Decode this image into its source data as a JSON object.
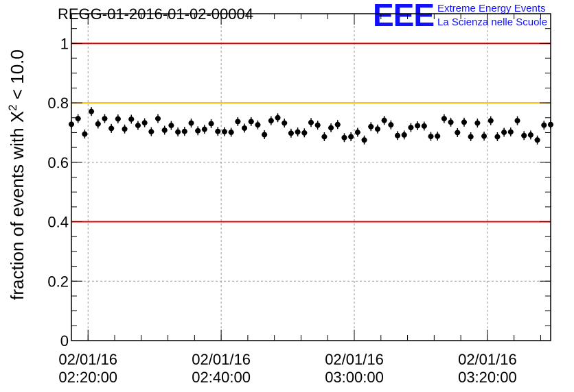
{
  "header": {
    "title": "REGG-01-2016-01-02-00004",
    "logo_mark": "EEE",
    "logo_line1": "Extreme Energy Events",
    "logo_line2": "La Scienza nelle Scuole",
    "logo_color": "#1010ff"
  },
  "chart_data": {
    "type": "scatter",
    "title": "REGG-01-2016-01-02-00004",
    "xlabel": "",
    "ylabel_main": "fraction of events with X",
    "ylabel_sup": "2",
    "ylabel_tail": " < 10.0",
    "ylim": [
      0,
      1.1
    ],
    "xlim": [
      "02/01/16 02:17:30",
      "02/01/16 03:29:30"
    ],
    "yticks": [
      {
        "value": 0,
        "label": "0"
      },
      {
        "value": 0.2,
        "label": "0.2"
      },
      {
        "value": 0.4,
        "label": "0.4"
      },
      {
        "value": 0.6,
        "label": "0.6"
      },
      {
        "value": 0.8,
        "label": "0.8"
      },
      {
        "value": 1.0,
        "label": "1"
      }
    ],
    "xticks": [
      {
        "time": "02/01/16 02:20:00",
        "line1": "02/01/16",
        "line2": "02:20:00"
      },
      {
        "time": "02/01/16 02:40:00",
        "line1": "02/01/16",
        "line2": "02:40:00"
      },
      {
        "time": "02/01/16 03:00:00",
        "line1": "02/01/16",
        "line2": "03:00:00"
      },
      {
        "time": "02/01/16 03:20:00",
        "line1": "02/01/16",
        "line2": "03:20:00"
      }
    ],
    "grid": true,
    "reference_lines": [
      {
        "value": 1.0,
        "color": "#e00000"
      },
      {
        "value": 0.8,
        "color": "#ffbb00"
      },
      {
        "value": 0.4,
        "color": "#e00000"
      }
    ],
    "x_start": "02/01/16 02:17:30",
    "x_step_minutes": 1,
    "y": [
      0.728,
      0.747,
      0.695,
      0.771,
      0.729,
      0.747,
      0.714,
      0.746,
      0.712,
      0.745,
      0.724,
      0.733,
      0.703,
      0.747,
      0.708,
      0.724,
      0.702,
      0.704,
      0.732,
      0.706,
      0.711,
      0.73,
      0.704,
      0.703,
      0.701,
      0.737,
      0.715,
      0.737,
      0.726,
      0.693,
      0.74,
      0.75,
      0.732,
      0.698,
      0.702,
      0.699,
      0.734,
      0.725,
      0.686,
      0.716,
      0.727,
      0.683,
      0.686,
      0.701,
      0.675,
      0.72,
      0.712,
      0.741,
      0.726,
      0.69,
      0.692,
      0.717,
      0.723,
      0.722,
      0.687,
      0.688,
      0.747,
      0.735,
      0.7,
      0.735,
      0.686,
      0.732,
      0.688,
      0.74,
      0.686,
      0.701,
      0.702,
      0.74,
      0.69,
      0.692,
      0.675,
      0.725,
      0.727
    ],
    "y_error": 0.015,
    "marker_color": "#000000"
  }
}
